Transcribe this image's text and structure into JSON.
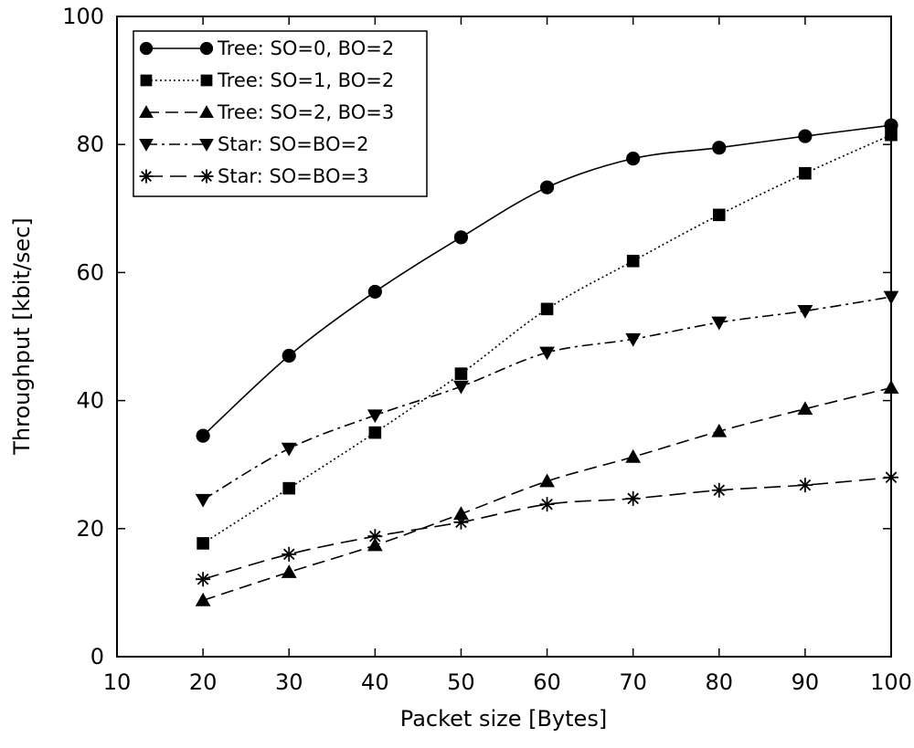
{
  "chart_data": {
    "type": "line",
    "title": "",
    "xlabel": "Packet size [Bytes]",
    "ylabel": "Throughput [kbit/sec]",
    "xlim": [
      10,
      100
    ],
    "ylim": [
      0,
      100
    ],
    "xticks": [
      "10",
      "20",
      "30",
      "40",
      "50",
      "60",
      "70",
      "80",
      "90",
      "100"
    ],
    "yticks": [
      "0",
      "20",
      "40",
      "60",
      "80",
      "100"
    ],
    "grid": false,
    "legend_position": "top-left",
    "x": [
      20,
      30,
      40,
      50,
      60,
      70,
      80,
      90,
      100
    ],
    "series": [
      {
        "name": "Tree: SO=0, BO=2",
        "marker": "circle",
        "dash": "solid",
        "values": [
          34.5,
          47,
          57,
          65.5,
          73.3,
          77.8,
          79.5,
          81.3,
          83
        ]
      },
      {
        "name": "Tree: SO=1, BO=2",
        "marker": "square",
        "dash": "dotted",
        "values": [
          17.7,
          26.3,
          35,
          44.2,
          54.3,
          61.8,
          69,
          75.5,
          81.5
        ]
      },
      {
        "name": "Tree: SO=2, BO=3",
        "marker": "triangle-up",
        "dash": "dashed",
        "values": [
          8.8,
          13.2,
          17.4,
          22.3,
          27.4,
          31.2,
          35.2,
          38.7,
          42
        ]
      },
      {
        "name": "Star: SO=BO=2",
        "marker": "triangle-down",
        "dash": "dashdot",
        "values": [
          24.5,
          32.5,
          37.7,
          42.2,
          47.5,
          49.6,
          52.2,
          54,
          56.2
        ]
      },
      {
        "name": "Star: SO=BO=3",
        "marker": "asterisk",
        "dash": "longdash",
        "values": [
          12.1,
          16,
          18.8,
          21,
          23.8,
          24.7,
          26,
          26.8,
          28
        ]
      }
    ]
  }
}
